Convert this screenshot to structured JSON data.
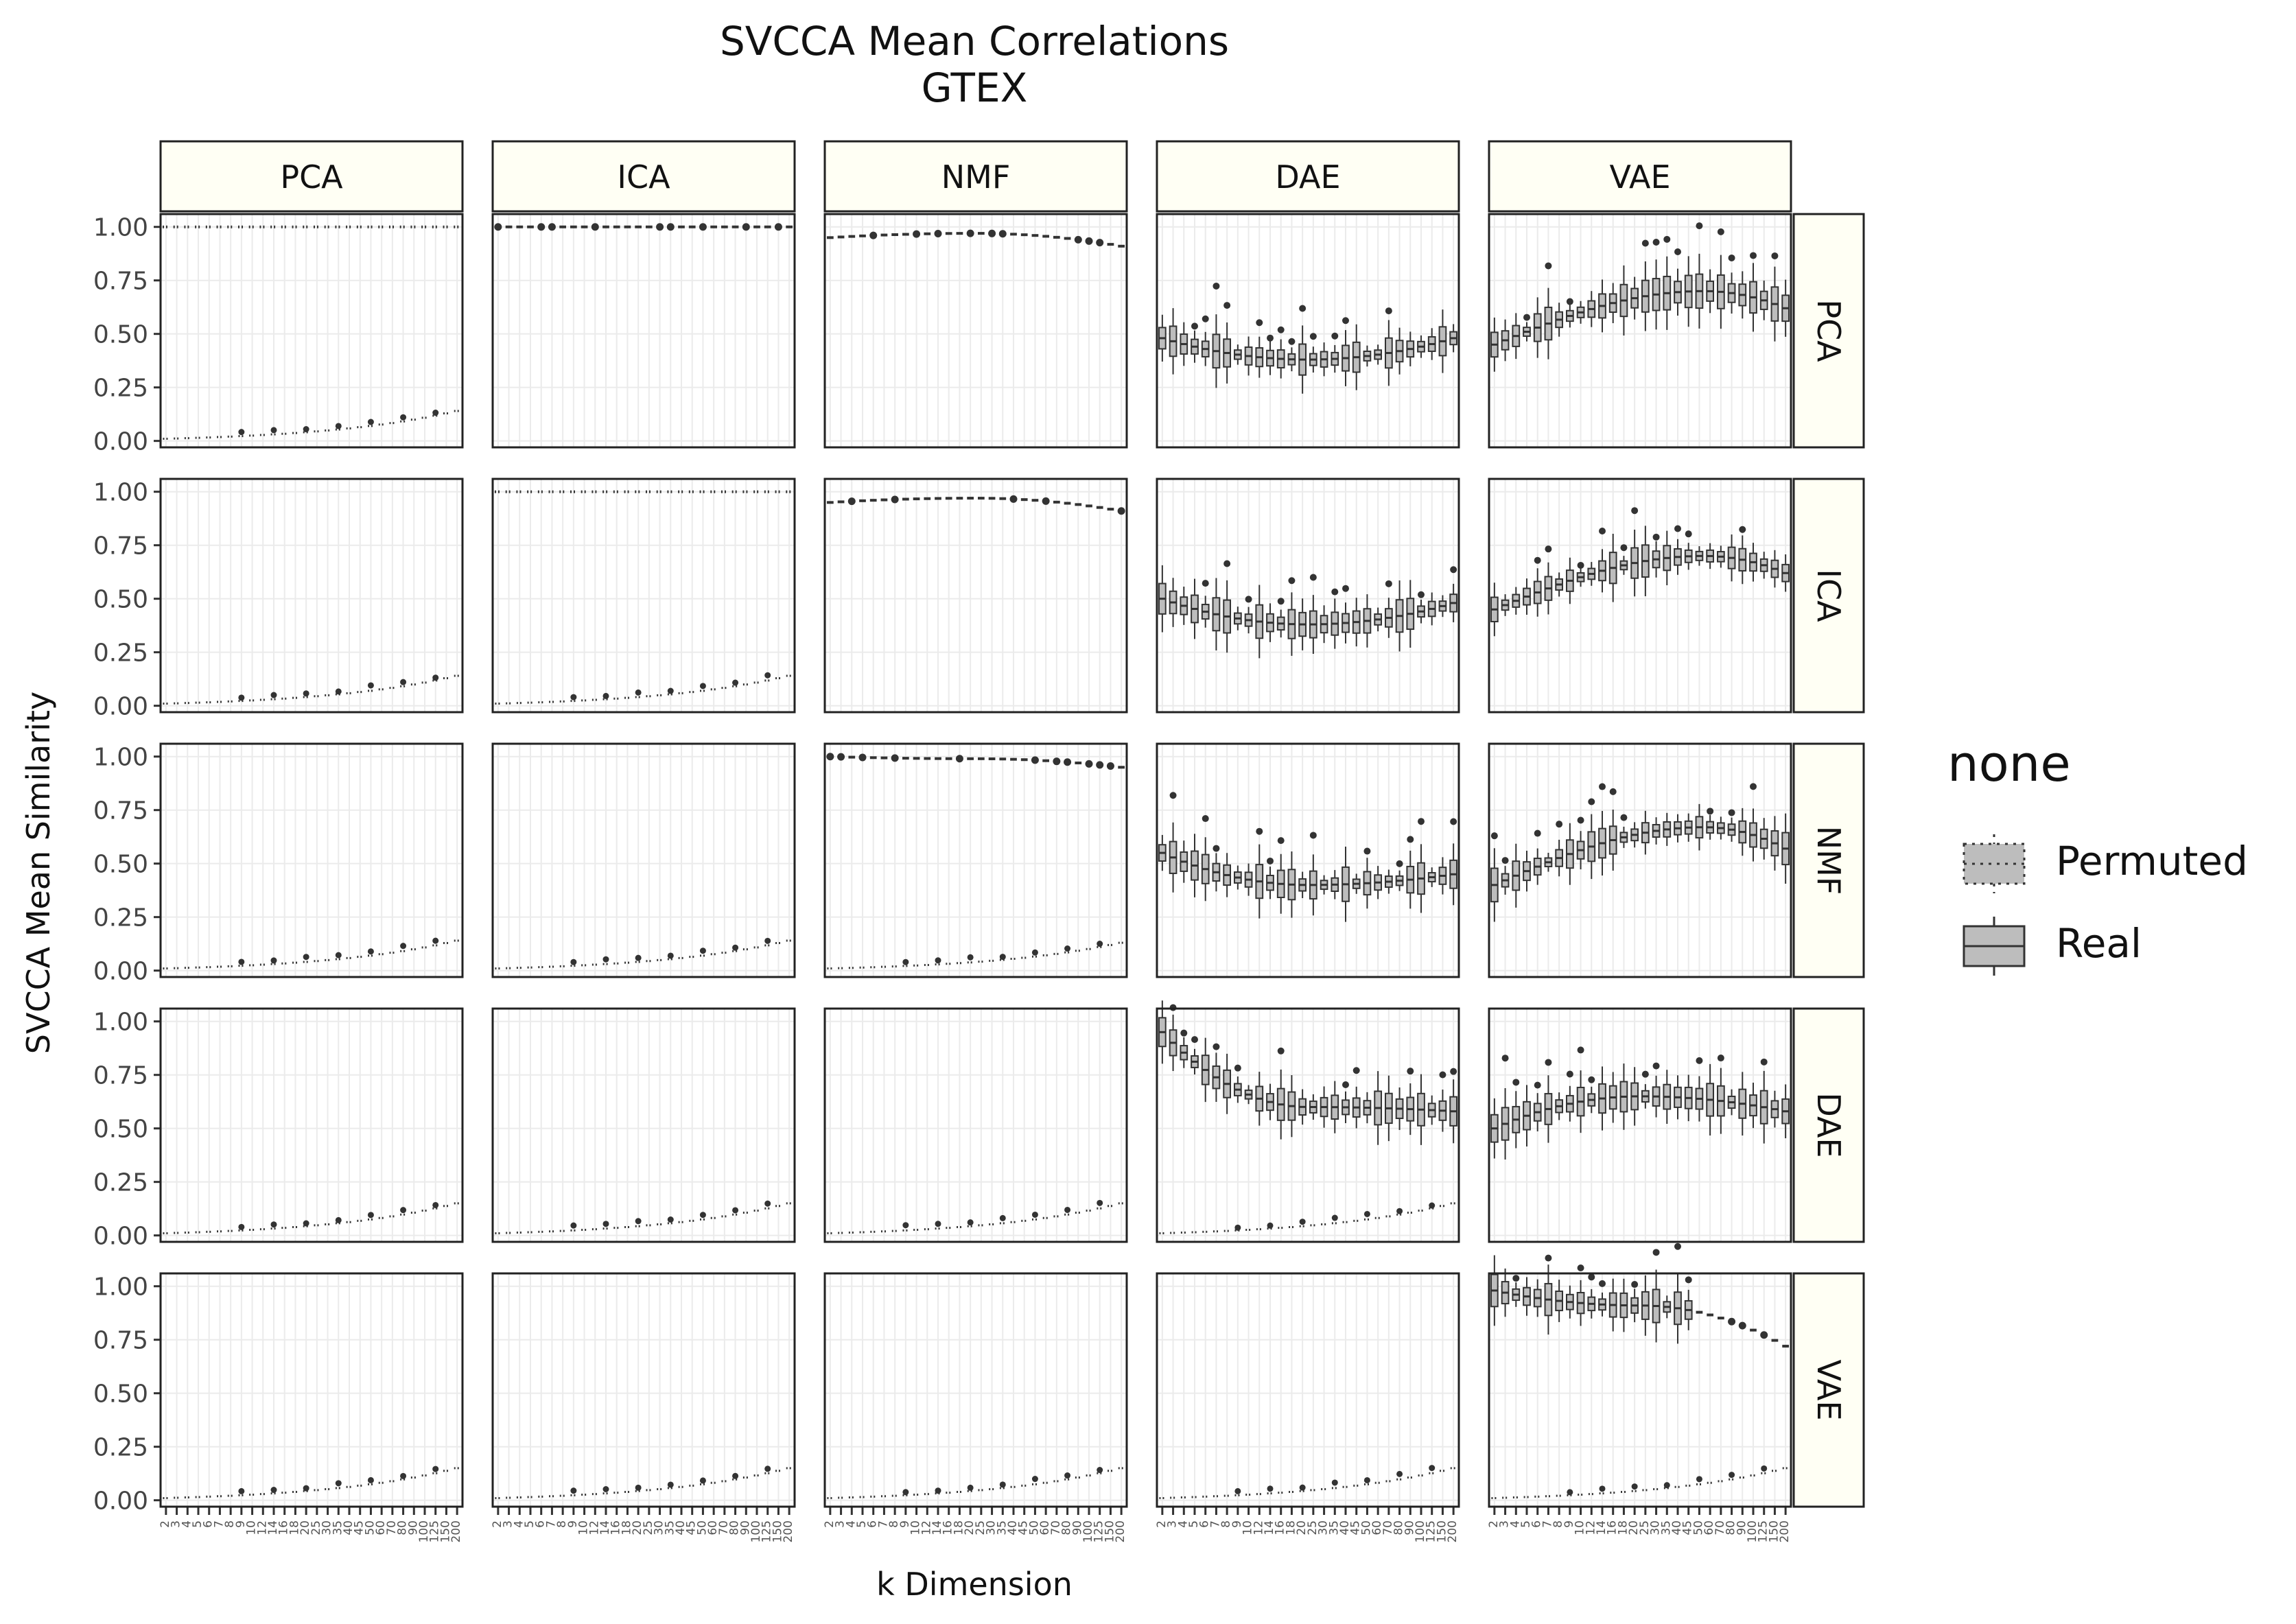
{
  "chart_data": {
    "type": "boxplot-facet-grid",
    "title": "SVCCA Mean Correlations",
    "subtitle": "GTEX",
    "xlabel": "k Dimension",
    "ylabel": "SVCCA Mean Similarity",
    "ylim": [
      -0.03,
      1.06
    ],
    "y_ticks": [
      0.0,
      0.25,
      0.5,
      0.75,
      1.0
    ],
    "y_tick_labels": [
      "0.00",
      "0.25",
      "0.50",
      "0.75",
      "1.00"
    ],
    "x_tick_labels": [
      "2",
      "3",
      "4",
      "5",
      "6",
      "7",
      "8",
      "9",
      "10",
      "12",
      "14",
      "16",
      "18",
      "20",
      "25",
      "30",
      "35",
      "40",
      "45",
      "50",
      "60",
      "70",
      "80",
      "90",
      "100",
      "125",
      "150",
      "200"
    ],
    "col_facets": [
      "PCA",
      "ICA",
      "NMF",
      "DAE",
      "VAE"
    ],
    "row_facets": [
      "PCA",
      "ICA",
      "NMF",
      "DAE",
      "VAE"
    ],
    "legend": {
      "title": "none",
      "position": "right",
      "items": [
        {
          "label": "Permuted",
          "linestyle": "dotted"
        },
        {
          "label": "Real",
          "linestyle": "solid"
        }
      ]
    },
    "colors": {
      "box_fill": "#bdbdbd",
      "box_edge": "#333333",
      "strip_fill": "#fffff4",
      "grid": "#ebebeb"
    },
    "grid": true,
    "panels": [
      {
        "row": "PCA",
        "col": "PCA",
        "real": {
          "start": 1.0,
          "end": 1.0
        },
        "permuted": {
          "start": 0.01,
          "end": 0.14
        }
      },
      {
        "row": "PCA",
        "col": "ICA",
        "real": {
          "start": 1.0,
          "end": 1.0
        },
        "permuted": null
      },
      {
        "row": "PCA",
        "col": "NMF",
        "real": {
          "start": 0.95,
          "mid": 0.97,
          "end": 0.91
        },
        "permuted": null
      },
      {
        "row": "PCA",
        "col": "DAE",
        "real": {
          "start": 0.48,
          "mid": 0.38,
          "end": 0.48
        },
        "permuted": null
      },
      {
        "row": "PCA",
        "col": "VAE",
        "real": {
          "start": 0.45,
          "peak": 0.7,
          "end": 0.62
        },
        "permuted": null
      },
      {
        "row": "ICA",
        "col": "PCA",
        "real": null,
        "permuted": {
          "start": 0.01,
          "end": 0.14
        }
      },
      {
        "row": "ICA",
        "col": "ICA",
        "real": {
          "start": 1.0,
          "end": 1.0
        },
        "permuted": {
          "start": 0.01,
          "end": 0.14
        }
      },
      {
        "row": "ICA",
        "col": "NMF",
        "real": {
          "start": 0.95,
          "mid": 0.97,
          "end": 0.91
        },
        "permuted": null
      },
      {
        "row": "ICA",
        "col": "DAE",
        "real": {
          "start": 0.5,
          "mid": 0.38,
          "end": 0.48
        },
        "permuted": null
      },
      {
        "row": "ICA",
        "col": "VAE",
        "real": {
          "start": 0.45,
          "peak": 0.7,
          "end": 0.62
        },
        "permuted": null
      },
      {
        "row": "NMF",
        "col": "PCA",
        "real": null,
        "permuted": {
          "start": 0.01,
          "end": 0.14
        }
      },
      {
        "row": "NMF",
        "col": "ICA",
        "real": null,
        "permuted": {
          "start": 0.01,
          "end": 0.14
        }
      },
      {
        "row": "NMF",
        "col": "NMF",
        "real": {
          "start": 1.0,
          "mid": 0.99,
          "end": 0.95
        },
        "permuted": {
          "start": 0.01,
          "end": 0.13
        }
      },
      {
        "row": "NMF",
        "col": "DAE",
        "real": {
          "start": 0.55,
          "mid": 0.4,
          "end": 0.45
        },
        "permuted": null
      },
      {
        "row": "NMF",
        "col": "VAE",
        "real": {
          "start": 0.4,
          "peak": 0.67,
          "end": 0.57
        },
        "permuted": null
      },
      {
        "row": "DAE",
        "col": "PCA",
        "real": null,
        "permuted": {
          "start": 0.01,
          "end": 0.15
        }
      },
      {
        "row": "DAE",
        "col": "ICA",
        "real": null,
        "permuted": {
          "start": 0.01,
          "end": 0.15
        }
      },
      {
        "row": "DAE",
        "col": "NMF",
        "real": null,
        "permuted": {
          "start": 0.01,
          "end": 0.15
        }
      },
      {
        "row": "DAE",
        "col": "DAE",
        "real": {
          "start": 0.95,
          "mid": 0.6,
          "end": 0.58
        },
        "permuted": {
          "start": 0.01,
          "end": 0.15
        }
      },
      {
        "row": "DAE",
        "col": "VAE",
        "real": {
          "start": 0.5,
          "mid": 0.65,
          "end": 0.58
        },
        "permuted": null
      },
      {
        "row": "VAE",
        "col": "PCA",
        "real": null,
        "permuted": {
          "start": 0.01,
          "end": 0.15
        }
      },
      {
        "row": "VAE",
        "col": "ICA",
        "real": null,
        "permuted": {
          "start": 0.01,
          "end": 0.15
        }
      },
      {
        "row": "VAE",
        "col": "NMF",
        "real": null,
        "permuted": {
          "start": 0.01,
          "end": 0.15
        }
      },
      {
        "row": "VAE",
        "col": "DAE",
        "real": null,
        "permuted": {
          "start": 0.01,
          "end": 0.15
        }
      },
      {
        "row": "VAE",
        "col": "VAE",
        "real": {
          "start": 0.98,
          "mid": 0.91,
          "end": 0.72
        },
        "permuted": {
          "start": 0.01,
          "end": 0.15
        }
      }
    ]
  }
}
